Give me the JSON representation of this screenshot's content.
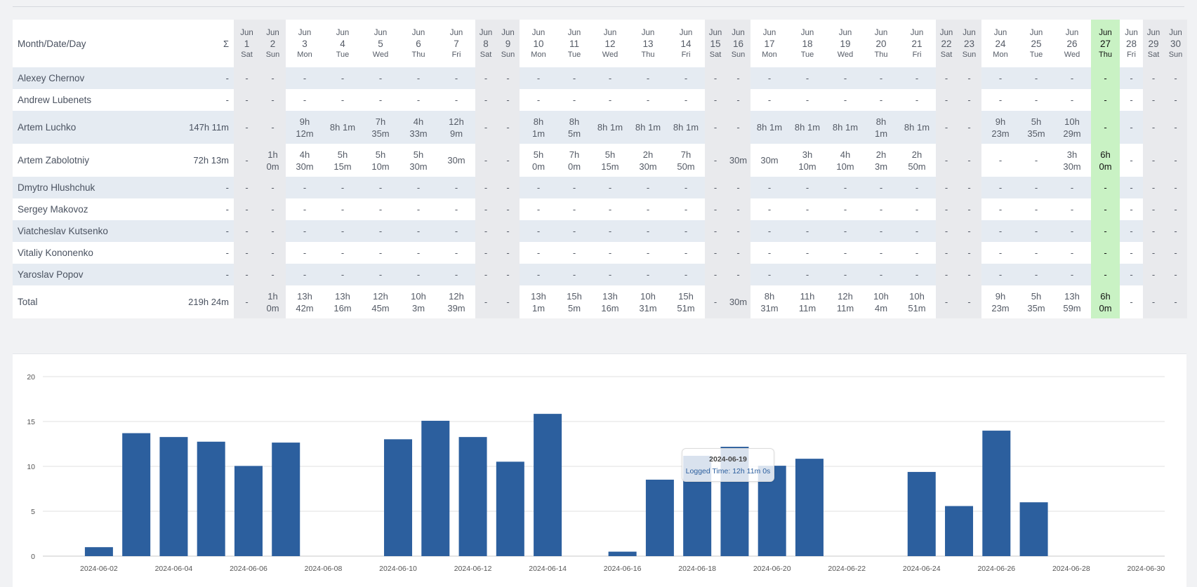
{
  "header": {
    "label": "Month/Date/Day",
    "sigma": "Σ",
    "days": [
      {
        "m": "Jun",
        "d": "1",
        "w": "Sat"
      },
      {
        "m": "Jun",
        "d": "2",
        "w": "Sun"
      },
      {
        "m": "Jun",
        "d": "3",
        "w": "Mon"
      },
      {
        "m": "Jun",
        "d": "4",
        "w": "Tue"
      },
      {
        "m": "Jun",
        "d": "5",
        "w": "Wed"
      },
      {
        "m": "Jun",
        "d": "6",
        "w": "Thu"
      },
      {
        "m": "Jun",
        "d": "7",
        "w": "Fri"
      },
      {
        "m": "Jun",
        "d": "8",
        "w": "Sat"
      },
      {
        "m": "Jun",
        "d": "9",
        "w": "Sun"
      },
      {
        "m": "Jun",
        "d": "10",
        "w": "Mon"
      },
      {
        "m": "Jun",
        "d": "11",
        "w": "Tue"
      },
      {
        "m": "Jun",
        "d": "12",
        "w": "Wed"
      },
      {
        "m": "Jun",
        "d": "13",
        "w": "Thu"
      },
      {
        "m": "Jun",
        "d": "14",
        "w": "Fri"
      },
      {
        "m": "Jun",
        "d": "15",
        "w": "Sat"
      },
      {
        "m": "Jun",
        "d": "16",
        "w": "Sun"
      },
      {
        "m": "Jun",
        "d": "17",
        "w": "Mon"
      },
      {
        "m": "Jun",
        "d": "18",
        "w": "Tue"
      },
      {
        "m": "Jun",
        "d": "19",
        "w": "Wed"
      },
      {
        "m": "Jun",
        "d": "20",
        "w": "Thu"
      },
      {
        "m": "Jun",
        "d": "21",
        "w": "Fri"
      },
      {
        "m": "Jun",
        "d": "22",
        "w": "Sat"
      },
      {
        "m": "Jun",
        "d": "23",
        "w": "Sun"
      },
      {
        "m": "Jun",
        "d": "24",
        "w": "Mon"
      },
      {
        "m": "Jun",
        "d": "25",
        "w": "Tue"
      },
      {
        "m": "Jun",
        "d": "26",
        "w": "Wed"
      },
      {
        "m": "Jun",
        "d": "27",
        "w": "Thu"
      },
      {
        "m": "Jun",
        "d": "28",
        "w": "Fri"
      },
      {
        "m": "Jun",
        "d": "29",
        "w": "Sat"
      },
      {
        "m": "Jun",
        "d": "30",
        "w": "Sun"
      }
    ]
  },
  "rows": [
    {
      "name": "Alexey Chernov",
      "total": "-",
      "cells": [
        "-",
        "-",
        "-",
        "-",
        "-",
        "-",
        "-",
        "-",
        "-",
        "-",
        "-",
        "-",
        "-",
        "-",
        "-",
        "-",
        "-",
        "-",
        "-",
        "-",
        "-",
        "-",
        "-",
        "-",
        "-",
        "-",
        "-",
        "-",
        "-",
        "-"
      ]
    },
    {
      "name": "Andrew Lubenets",
      "total": "-",
      "cells": [
        "-",
        "-",
        "-",
        "-",
        "-",
        "-",
        "-",
        "-",
        "-",
        "-",
        "-",
        "-",
        "-",
        "-",
        "-",
        "-",
        "-",
        "-",
        "-",
        "-",
        "-",
        "-",
        "-",
        "-",
        "-",
        "-",
        "-",
        "-",
        "-",
        "-"
      ]
    },
    {
      "name": "Artem Luchko",
      "total": "147h 11m",
      "cells": [
        "-",
        "-",
        "9h\n12m",
        "8h 1m",
        "7h\n35m",
        "4h\n33m",
        "12h\n9m",
        "-",
        "-",
        "8h\n1m",
        "8h\n5m",
        "8h 1m",
        "8h 1m",
        "8h 1m",
        "-",
        "-",
        "8h 1m",
        "8h 1m",
        "8h 1m",
        "8h\n1m",
        "8h 1m",
        "-",
        "-",
        "9h\n23m",
        "5h\n35m",
        "10h\n29m",
        "-",
        "-",
        "-",
        "-"
      ]
    },
    {
      "name": "Artem Zabolotniy",
      "total": "72h 13m",
      "cells": [
        "-",
        "1h\n0m",
        "4h\n30m",
        "5h\n15m",
        "5h\n10m",
        "5h\n30m",
        "30m",
        "-",
        "-",
        "5h\n0m",
        "7h\n0m",
        "5h\n15m",
        "2h\n30m",
        "7h\n50m",
        "-",
        "30m",
        "30m",
        "3h\n10m",
        "4h\n10m",
        "2h\n3m",
        "2h\n50m",
        "-",
        "-",
        "-",
        "-",
        "3h\n30m",
        "6h\n0m",
        "-",
        "-",
        "-"
      ]
    },
    {
      "name": "Dmytro Hlushchuk",
      "total": "-",
      "cells": [
        "-",
        "-",
        "-",
        "-",
        "-",
        "-",
        "-",
        "-",
        "-",
        "-",
        "-",
        "-",
        "-",
        "-",
        "-",
        "-",
        "-",
        "-",
        "-",
        "-",
        "-",
        "-",
        "-",
        "-",
        "-",
        "-",
        "-",
        "-",
        "-",
        "-"
      ]
    },
    {
      "name": "Sergey Makovoz",
      "total": "-",
      "cells": [
        "-",
        "-",
        "-",
        "-",
        "-",
        "-",
        "-",
        "-",
        "-",
        "-",
        "-",
        "-",
        "-",
        "-",
        "-",
        "-",
        "-",
        "-",
        "-",
        "-",
        "-",
        "-",
        "-",
        "-",
        "-",
        "-",
        "-",
        "-",
        "-",
        "-"
      ]
    },
    {
      "name": "Viatcheslav Kutsenko",
      "total": "-",
      "cells": [
        "-",
        "-",
        "-",
        "-",
        "-",
        "-",
        "-",
        "-",
        "-",
        "-",
        "-",
        "-",
        "-",
        "-",
        "-",
        "-",
        "-",
        "-",
        "-",
        "-",
        "-",
        "-",
        "-",
        "-",
        "-",
        "-",
        "-",
        "-",
        "-",
        "-"
      ]
    },
    {
      "name": "Vitaliy Kononenko",
      "total": "-",
      "cells": [
        "-",
        "-",
        "-",
        "-",
        "-",
        "-",
        "-",
        "-",
        "-",
        "-",
        "-",
        "-",
        "-",
        "-",
        "-",
        "-",
        "-",
        "-",
        "-",
        "-",
        "-",
        "-",
        "-",
        "-",
        "-",
        "-",
        "-",
        "-",
        "-",
        "-"
      ]
    },
    {
      "name": "Yaroslav Popov",
      "total": "-",
      "cells": [
        "-",
        "-",
        "-",
        "-",
        "-",
        "-",
        "-",
        "-",
        "-",
        "-",
        "-",
        "-",
        "-",
        "-",
        "-",
        "-",
        "-",
        "-",
        "-",
        "-",
        "-",
        "-",
        "-",
        "-",
        "-",
        "-",
        "-",
        "-",
        "-",
        "-"
      ]
    },
    {
      "name": "Total",
      "total": "219h 24m",
      "cells": [
        "-",
        "1h\n0m",
        "13h\n42m",
        "13h\n16m",
        "12h\n45m",
        "10h\n3m",
        "12h\n39m",
        "-",
        "-",
        "13h\n1m",
        "15h\n5m",
        "13h\n16m",
        "10h\n31m",
        "15h\n51m",
        "-",
        "30m",
        "8h\n31m",
        "11h\n11m",
        "12h\n11m",
        "10h\n4m",
        "10h\n51m",
        "-",
        "-",
        "9h\n23m",
        "5h\n35m",
        "13h\n59m",
        "6h\n0m",
        "-",
        "-",
        "-"
      ]
    }
  ],
  "colors": {
    "bar": "#2c5f9e",
    "today": "#c9f2c4",
    "weekend": "#e9eaed",
    "odd_row": "#e5ebf2"
  },
  "chart_data": {
    "type": "bar",
    "categories": [
      "2024-06-01",
      "2024-06-02",
      "2024-06-03",
      "2024-06-04",
      "2024-06-05",
      "2024-06-06",
      "2024-06-07",
      "2024-06-08",
      "2024-06-09",
      "2024-06-10",
      "2024-06-11",
      "2024-06-12",
      "2024-06-13",
      "2024-06-14",
      "2024-06-15",
      "2024-06-16",
      "2024-06-17",
      "2024-06-18",
      "2024-06-19",
      "2024-06-20",
      "2024-06-21",
      "2024-06-22",
      "2024-06-23",
      "2024-06-24",
      "2024-06-25",
      "2024-06-26",
      "2024-06-27",
      "2024-06-28",
      "2024-06-29",
      "2024-06-30"
    ],
    "values": [
      0,
      1,
      13.7,
      13.27,
      12.75,
      10.05,
      12.65,
      0,
      0,
      13.02,
      15.08,
      13.27,
      10.52,
      15.85,
      0,
      0.5,
      8.52,
      11.18,
      12.18,
      10.07,
      10.85,
      0,
      0,
      9.38,
      5.58,
      13.98,
      6,
      0,
      0,
      0
    ],
    "xtick_labels": [
      "2024-06-02",
      "2024-06-04",
      "2024-06-06",
      "2024-06-08",
      "2024-06-10",
      "2024-06-12",
      "2024-06-14",
      "2024-06-16",
      "2024-06-18",
      "2024-06-20",
      "2024-06-22",
      "2024-06-24",
      "2024-06-26",
      "2024-06-28",
      "2024-06-30"
    ],
    "yticks": [
      "0",
      "5",
      "10",
      "15",
      "20"
    ],
    "ylim": [
      0,
      20
    ],
    "grid": true,
    "tooltip": {
      "title": "2024-06-19",
      "text": "Logged Time: 12h 11m 0s"
    }
  }
}
